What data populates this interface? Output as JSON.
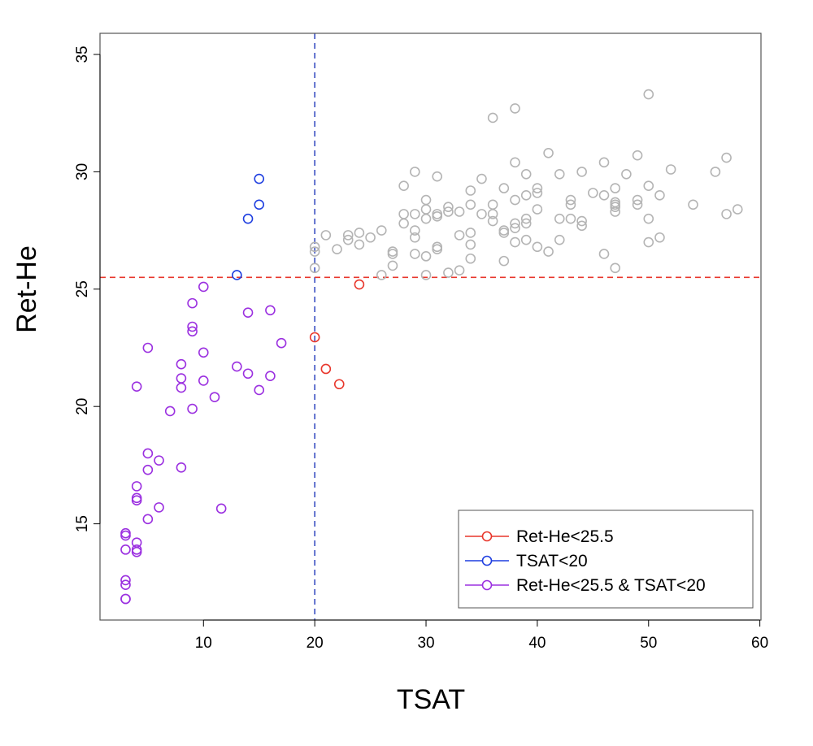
{
  "chart_data": {
    "type": "scatter",
    "title": "",
    "xlabel": "TSAT",
    "ylabel": "Ret-He",
    "xlim": [
      0.7,
      60.1
    ],
    "ylim": [
      10.9,
      35.9
    ],
    "x_ticks": [
      10,
      20,
      30,
      40,
      50,
      60
    ],
    "y_ticks": [
      15,
      20,
      25,
      30,
      35
    ],
    "grid": false,
    "legend_position": "bottom-right",
    "reference_lines": [
      {
        "orientation": "vertical",
        "value": 20,
        "color": "#3a4fc2",
        "style": "dashed"
      },
      {
        "orientation": "horizontal",
        "value": 25.5,
        "color": "#e8372c",
        "style": "dashed"
      }
    ],
    "series": [
      {
        "name": "",
        "color": "#b4b4b4",
        "points": [
          [
            20,
            26.8
          ],
          [
            20,
            26.6
          ],
          [
            20,
            25.9
          ],
          [
            21,
            27.3
          ],
          [
            22,
            26.7
          ],
          [
            23,
            27.3
          ],
          [
            23,
            27.1
          ],
          [
            24,
            27.4
          ],
          [
            24,
            26.9
          ],
          [
            25,
            27.2
          ],
          [
            26,
            27.5
          ],
          [
            26,
            25.6
          ],
          [
            27,
            26.6
          ],
          [
            27,
            26.5
          ],
          [
            27,
            26.0
          ],
          [
            28,
            29.4
          ],
          [
            28,
            28.2
          ],
          [
            28,
            27.8
          ],
          [
            29,
            30.0
          ],
          [
            29,
            28.2
          ],
          [
            29,
            27.5
          ],
          [
            29,
            27.2
          ],
          [
            29,
            26.5
          ],
          [
            30,
            28.8
          ],
          [
            30,
            28.4
          ],
          [
            30,
            28.0
          ],
          [
            30,
            26.4
          ],
          [
            30,
            25.6
          ],
          [
            31,
            29.8
          ],
          [
            31,
            28.2
          ],
          [
            31,
            28.1
          ],
          [
            31,
            26.8
          ],
          [
            31,
            26.7
          ],
          [
            32,
            28.5
          ],
          [
            32,
            28.3
          ],
          [
            32,
            25.7
          ],
          [
            33,
            28.3
          ],
          [
            33,
            27.3
          ],
          [
            33,
            25.8
          ],
          [
            34,
            29.2
          ],
          [
            34,
            28.6
          ],
          [
            34,
            27.4
          ],
          [
            34,
            26.9
          ],
          [
            34,
            26.3
          ],
          [
            35,
            29.7
          ],
          [
            35,
            28.2
          ],
          [
            36,
            32.3
          ],
          [
            36,
            28.6
          ],
          [
            36,
            28.2
          ],
          [
            36,
            27.9
          ],
          [
            37,
            29.3
          ],
          [
            37,
            27.5
          ],
          [
            37,
            27.4
          ],
          [
            37,
            26.2
          ],
          [
            38,
            32.7
          ],
          [
            38,
            30.4
          ],
          [
            38,
            28.8
          ],
          [
            38,
            27.8
          ],
          [
            38,
            27.6
          ],
          [
            38,
            27.0
          ],
          [
            39,
            29.9
          ],
          [
            39,
            29.0
          ],
          [
            39,
            28.0
          ],
          [
            39,
            27.8
          ],
          [
            39,
            27.1
          ],
          [
            40,
            29.3
          ],
          [
            40,
            29.1
          ],
          [
            40,
            28.4
          ],
          [
            40,
            26.8
          ],
          [
            41,
            30.8
          ],
          [
            41,
            26.6
          ],
          [
            42,
            29.9
          ],
          [
            42,
            28.0
          ],
          [
            42,
            27.1
          ],
          [
            43,
            28.8
          ],
          [
            43,
            28.6
          ],
          [
            43,
            28.0
          ],
          [
            44,
            30.0
          ],
          [
            44,
            27.9
          ],
          [
            44,
            27.7
          ],
          [
            45,
            29.1
          ],
          [
            46,
            30.4
          ],
          [
            46,
            29.0
          ],
          [
            46,
            26.5
          ],
          [
            47,
            29.3
          ],
          [
            47,
            28.7
          ],
          [
            47,
            28.6
          ],
          [
            47,
            28.5
          ],
          [
            47,
            28.3
          ],
          [
            47,
            25.9
          ],
          [
            48,
            29.9
          ],
          [
            49,
            30.7
          ],
          [
            49,
            28.8
          ],
          [
            49,
            28.6
          ],
          [
            50,
            33.3
          ],
          [
            50,
            29.4
          ],
          [
            50,
            28.0
          ],
          [
            50,
            27.0
          ],
          [
            51,
            29.0
          ],
          [
            51,
            27.2
          ],
          [
            52,
            30.1
          ],
          [
            54,
            28.6
          ],
          [
            56,
            30.0
          ],
          [
            57,
            30.6
          ],
          [
            57,
            28.2
          ],
          [
            58,
            28.4
          ]
        ]
      },
      {
        "name": "Ret-He<25.5",
        "color": "#e8372c",
        "points": [
          [
            20,
            22.95
          ],
          [
            21,
            21.6
          ],
          [
            22.2,
            20.95
          ],
          [
            24,
            25.2
          ]
        ]
      },
      {
        "name": "TSAT<20",
        "color": "#1f3fe0",
        "points": [
          [
            13,
            25.6
          ],
          [
            14,
            28.0
          ],
          [
            15,
            28.6
          ],
          [
            15,
            29.7
          ]
        ]
      },
      {
        "name": "Ret-He<25.5 & TSAT<20",
        "color": "#9b30e0",
        "points": [
          [
            3,
            14.6
          ],
          [
            3,
            14.5
          ],
          [
            3,
            13.9
          ],
          [
            3,
            12.6
          ],
          [
            3,
            12.4
          ],
          [
            3,
            11.8
          ],
          [
            3,
            11.8
          ],
          [
            4,
            20.85
          ],
          [
            4,
            16.6
          ],
          [
            4,
            16.1
          ],
          [
            4,
            16.0
          ],
          [
            4,
            14.2
          ],
          [
            4,
            13.9
          ],
          [
            4,
            13.8
          ],
          [
            5,
            22.5
          ],
          [
            5,
            18.0
          ],
          [
            5,
            17.3
          ],
          [
            5,
            15.2
          ],
          [
            6,
            17.7
          ],
          [
            6,
            15.7
          ],
          [
            7,
            19.8
          ],
          [
            8,
            21.8
          ],
          [
            8,
            21.2
          ],
          [
            8,
            20.8
          ],
          [
            8,
            17.4
          ],
          [
            9,
            24.4
          ],
          [
            9,
            23.4
          ],
          [
            9,
            23.2
          ],
          [
            9,
            19.9
          ],
          [
            10,
            25.1
          ],
          [
            10,
            22.3
          ],
          [
            10,
            21.1
          ],
          [
            11,
            20.4
          ],
          [
            11.6,
            15.65
          ],
          [
            13,
            21.7
          ],
          [
            14,
            24.0
          ],
          [
            14,
            21.4
          ],
          [
            15,
            20.7
          ],
          [
            16,
            24.1
          ],
          [
            16,
            21.3
          ],
          [
            17,
            22.7
          ]
        ]
      }
    ]
  }
}
